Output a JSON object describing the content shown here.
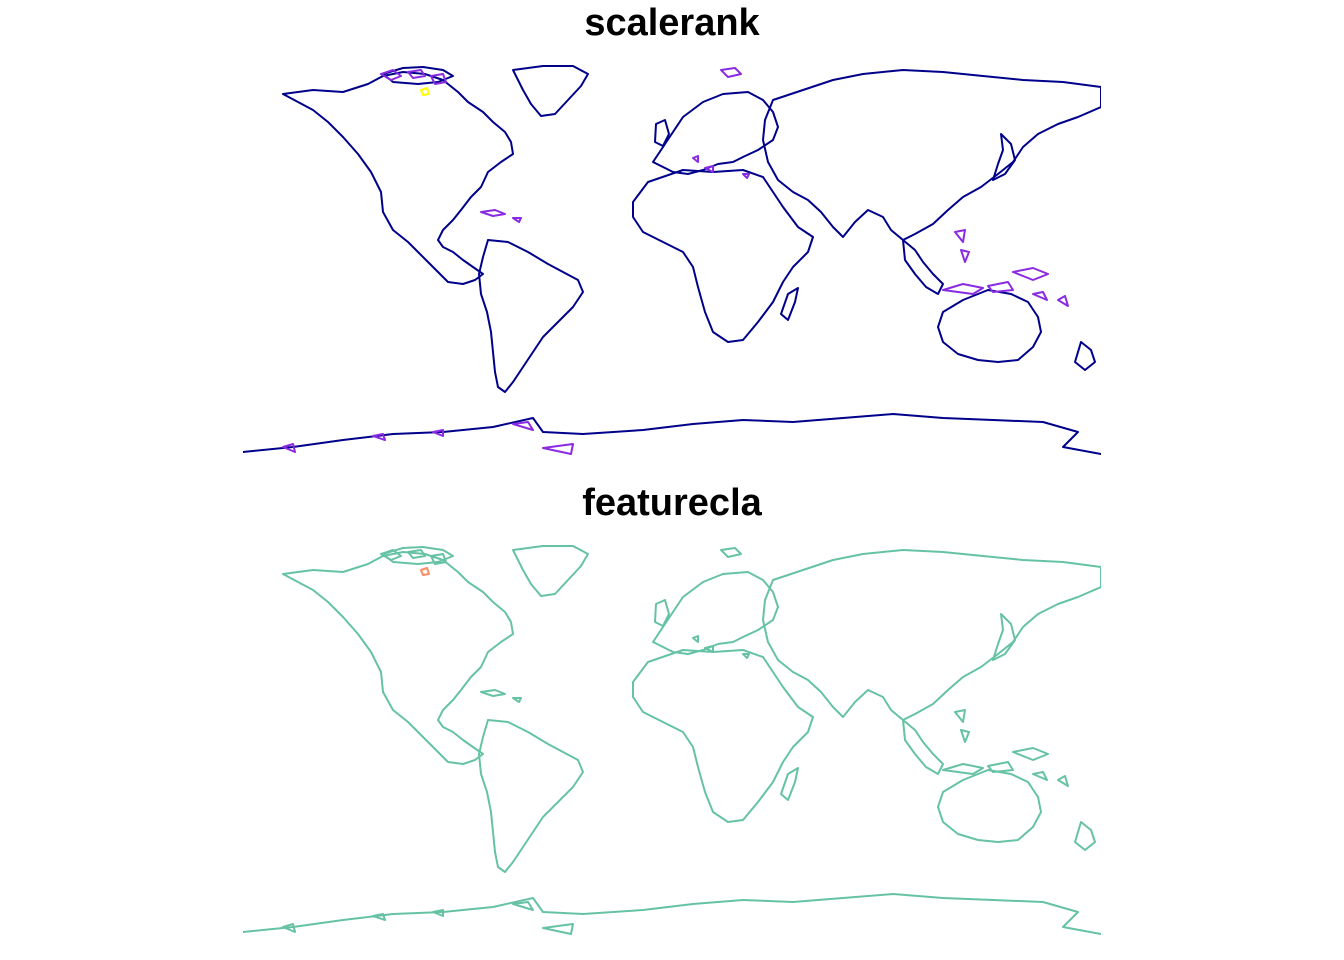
{
  "panels": [
    {
      "title": "scalerank",
      "colors": {
        "continent": "#00008B",
        "minor": "#8A2BE2",
        "highlight": "#FFFF00"
      }
    },
    {
      "title": "featurecla",
      "colors": {
        "continent": "#66C2A5",
        "highlight": "#FC8D62"
      }
    }
  ]
}
